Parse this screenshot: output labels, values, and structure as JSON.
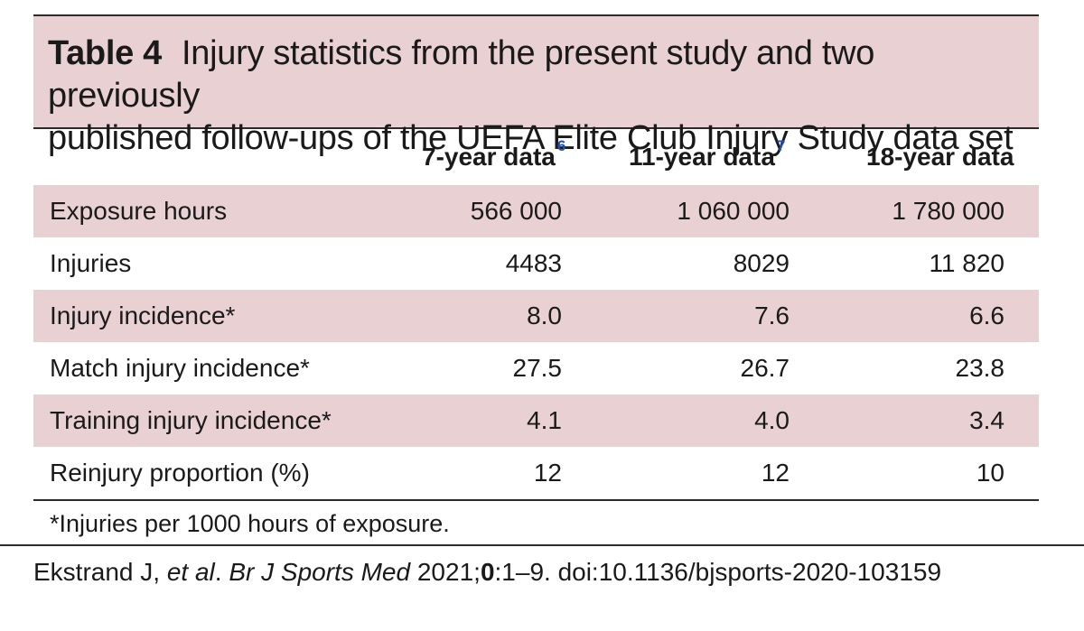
{
  "table": {
    "label": "Table 4",
    "caption_line1": "Injury statistics from the present study and two previously",
    "caption_line2": "published follow-ups of the UEFA Elite Club Injury Study data set",
    "headers": [
      {
        "text": "7-year data",
        "ref": "6"
      },
      {
        "text": "11-year data",
        "ref": "7"
      },
      {
        "text": "18-year data",
        "ref": ""
      }
    ],
    "rows": [
      {
        "label": "Exposure hours",
        "values": [
          "566 000",
          "1 060 000",
          "1 780 000"
        ]
      },
      {
        "label": "Injuries",
        "values": [
          "4483",
          "8029",
          "11 820"
        ]
      },
      {
        "label": "Injury incidence*",
        "values": [
          "8.0",
          "7.6",
          "6.6"
        ]
      },
      {
        "label": "Match injury incidence*",
        "values": [
          "27.5",
          "26.7",
          "23.8"
        ]
      },
      {
        "label": "Training injury incidence*",
        "values": [
          "4.1",
          "4.0",
          "3.4"
        ]
      },
      {
        "label": "Reinjury proportion (%)",
        "values": [
          "12",
          "12",
          "10"
        ]
      }
    ],
    "footnote": "*Injuries per 1000 hours of exposure."
  },
  "citation": {
    "authors": "Ekstrand J, ",
    "etal": "et al",
    "sep": ". ",
    "journal": "Br J Sports Med",
    "year": " 2021;",
    "volume": "0",
    "rest": ":1–9. doi:10.1136/bjsports-2020-103159"
  },
  "colors": {
    "band": "#e9d0d3",
    "rule": "#2b2b2b",
    "ref_link": "#1f4fb8"
  }
}
